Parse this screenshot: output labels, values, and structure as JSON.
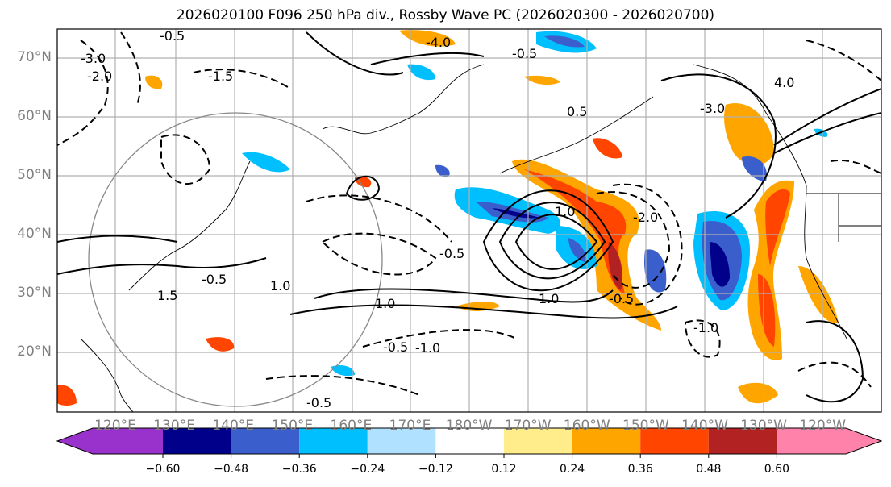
{
  "title": "2026020100 F096 250 hPa div., Rossby Wave PC (2026020300 - 2026020700)",
  "lat_labels": [
    "70°N",
    "60°N",
    "50°N",
    "40°N",
    "30°N",
    "20°N"
  ],
  "lon_labels": [
    "120°E",
    "130°E",
    "140°E",
    "150°E",
    "160°E",
    "170°E",
    "180°W",
    "170°W",
    "160°W",
    "150°W",
    "140°W",
    "130°W",
    "120°W"
  ],
  "colorbar": {
    "ticks": [
      "−0.60",
      "−0.48",
      "−0.36",
      "−0.24",
      "−0.12",
      "0.12",
      "0.24",
      "0.36",
      "0.48",
      "0.60"
    ],
    "colors": [
      "#9932cc",
      "#00008b",
      "#3a5fcd",
      "#00bfff",
      "#b0e2ff",
      "#ffffff",
      "#ffec8b",
      "#ffa500",
      "#ff4500",
      "#b22222",
      "#ff82ab"
    ]
  },
  "contour_labels": [
    "-0.5",
    "-1.5",
    "-2.0",
    "-3.0",
    "1.0",
    "-0.5",
    "-1.0",
    "1.0",
    "-0.5",
    "-4.0",
    "-0.5",
    "0.5",
    "4.0",
    "-3.0",
    "1.0",
    "-0.5",
    "-2.0",
    "1.0",
    "-1.0",
    "-0.5",
    "-0.5",
    "1.5"
  ]
}
